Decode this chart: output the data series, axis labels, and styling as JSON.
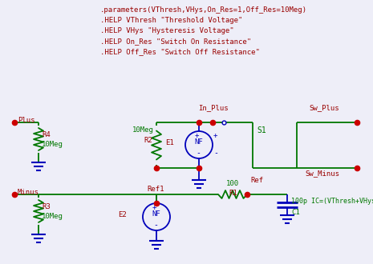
{
  "bg_color": "#eeeef8",
  "green": "#007700",
  "blue": "#0000bb",
  "red": "#990000",
  "dot_color": "#cc0000",
  "header_lines": [
    ".parameters(VThresh,VHys,On_Res=1,Off_Res=10Meg)",
    ".HELP VThresh \"Threshold Voltage\"",
    ".HELP VHys \"Hysteresis Voltage\"",
    ".HELP On_Res \"Switch On Resistance\"",
    ".HELP Off_Res \"Switch Off Resistance\""
  ],
  "fig_w": 4.65,
  "fig_h": 3.3,
  "dpi": 100
}
